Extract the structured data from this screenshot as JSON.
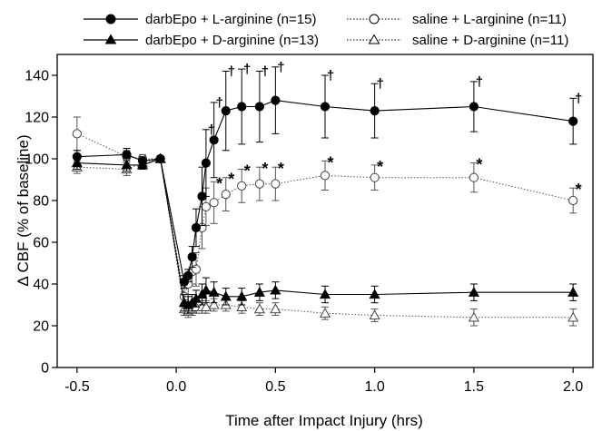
{
  "chart_data": {
    "type": "line",
    "xlabel": "Time after Impact Injury (hrs)",
    "ylabel": "Δ CBF (% of baseline)",
    "xlim": [
      -0.6,
      2.1
    ],
    "ylim": [
      0,
      150
    ],
    "xticks": [
      -0.5,
      0.0,
      0.5,
      1.0,
      1.5,
      2.0
    ],
    "xtick_labels": [
      "-0.5",
      "0.0",
      "0.5",
      "1.0",
      "1.5",
      "2.0"
    ],
    "yticks": [
      0,
      20,
      40,
      60,
      80,
      100,
      120,
      140
    ],
    "ytick_labels": [
      "0",
      "20",
      "40",
      "60",
      "80",
      "100",
      "120",
      "140"
    ],
    "legend_position": "top",
    "series": [
      {
        "name": "darbEpo + L-arginine (n=15)",
        "marker": "circle",
        "filled": true,
        "line_style": "solid",
        "x": [
          -0.5,
          -0.25,
          -0.17,
          -0.08,
          0.04,
          0.06,
          0.08,
          0.1,
          0.13,
          0.15,
          0.19,
          0.25,
          0.33,
          0.42,
          0.5,
          0.75,
          1.0,
          1.5,
          2.0
        ],
        "y": [
          101,
          102,
          99,
          100,
          41,
          44,
          53,
          67,
          82,
          98,
          109,
          123,
          125,
          125,
          128,
          125,
          123,
          125,
          118
        ],
        "err": [
          3,
          3,
          2,
          1,
          3,
          3,
          5,
          9,
          14,
          16,
          18,
          19,
          18,
          17,
          16,
          15,
          13,
          12,
          11
        ]
      },
      {
        "name": "darbEpo + D-arginine (n=13)",
        "marker": "triangle",
        "filled": true,
        "line_style": "solid",
        "x": [
          -0.5,
          -0.25,
          -0.17,
          -0.08,
          0.04,
          0.06,
          0.08,
          0.1,
          0.13,
          0.15,
          0.19,
          0.25,
          0.33,
          0.42,
          0.5,
          0.75,
          1.0,
          1.5,
          2.0
        ],
        "y": [
          98,
          97,
          97,
          100,
          31,
          30,
          31,
          33,
          35,
          37,
          36,
          34,
          34,
          36,
          37,
          35,
          35,
          36,
          36
        ],
        "err": [
          3,
          3,
          2,
          1,
          4,
          4,
          4,
          4,
          5,
          6,
          5,
          4,
          4,
          4,
          4,
          4,
          4,
          4,
          4
        ]
      },
      {
        "name": "saline + L-arginine (n=11)",
        "marker": "circle",
        "filled": false,
        "line_style": "dotted",
        "x": [
          -0.5,
          -0.25,
          -0.17,
          -0.08,
          0.04,
          0.06,
          0.08,
          0.1,
          0.13,
          0.15,
          0.19,
          0.25,
          0.33,
          0.42,
          0.5,
          0.75,
          1.0,
          1.5,
          2.0
        ],
        "y": [
          112,
          101,
          100,
          100,
          34,
          40,
          46,
          47,
          67,
          77,
          79,
          83,
          87,
          88,
          88,
          92,
          91,
          91,
          80
        ],
        "err": [
          8,
          3,
          2,
          1,
          4,
          5,
          6,
          8,
          10,
          9,
          10,
          8,
          8,
          8,
          8,
          7,
          6,
          7,
          6
        ]
      },
      {
        "name": "saline + D-arginine (n=11)",
        "marker": "triangle",
        "filled": false,
        "line_style": "dotted",
        "x": [
          -0.5,
          -0.25,
          -0.17,
          -0.08,
          0.04,
          0.06,
          0.08,
          0.1,
          0.13,
          0.15,
          0.19,
          0.25,
          0.33,
          0.42,
          0.5,
          0.75,
          1.0,
          1.5,
          2.0
        ],
        "y": [
          96,
          95,
          98,
          100,
          28,
          27,
          28,
          29,
          29,
          29,
          30,
          30,
          29,
          28,
          28,
          26,
          25,
          24,
          24
        ],
        "err": [
          3,
          3,
          2,
          1,
          3,
          3,
          3,
          3,
          3,
          3,
          3,
          3,
          3,
          3,
          3,
          3,
          3,
          4,
          4
        ]
      }
    ],
    "annotations": {
      "asterisks": {
        "symbol": "*",
        "x": [
          0.19,
          0.25,
          0.33,
          0.42,
          0.5,
          0.75,
          1.0,
          1.5,
          2.0
        ],
        "y": [
          89,
          91,
          95,
          96,
          96,
          99,
          97,
          98,
          86
        ]
      },
      "daggers": {
        "symbol": "†",
        "x": [
          0.15,
          0.19,
          0.25,
          0.33,
          0.42,
          0.5,
          0.75,
          1.0,
          1.5,
          2.0
        ],
        "y": [
          114,
          127,
          142,
          143,
          142,
          144,
          140,
          136,
          137,
          129
        ]
      }
    }
  }
}
